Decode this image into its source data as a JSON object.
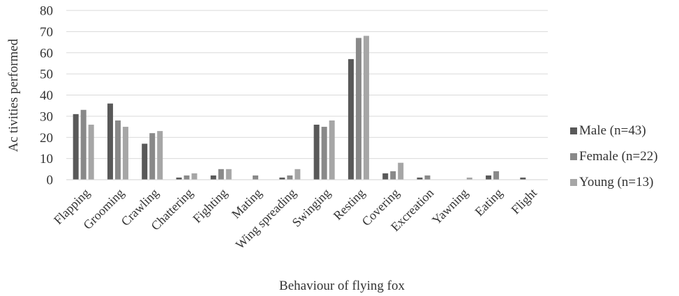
{
  "chart_data": {
    "type": "bar",
    "title": "",
    "xlabel": "Behaviour of flying fox",
    "ylabel": "Ac tivities performed",
    "ylim": [
      0,
      80
    ],
    "yticks": [
      0,
      10,
      20,
      30,
      40,
      50,
      60,
      70,
      80
    ],
    "grid": true,
    "legend_position": "right",
    "categories": [
      "Flapping",
      "Grooming",
      "Crawling",
      "Chattering",
      "Fighting",
      "Mating",
      "Wing spreading",
      "Swinging",
      "Resting",
      "Covering",
      "Excreation",
      "Yawning",
      "Eating",
      "Flight"
    ],
    "series": [
      {
        "name": "Male (n=43)",
        "color": "#595959",
        "values": [
          31,
          36,
          17,
          1,
          2,
          0,
          1,
          26,
          57,
          3,
          1,
          0,
          2,
          1
        ]
      },
      {
        "name": "Female (n=22)",
        "color": "#898989",
        "values": [
          33,
          28,
          22,
          2,
          5,
          2,
          2,
          25,
          67,
          4,
          2,
          0,
          4,
          0
        ]
      },
      {
        "name": "Young (n=13)",
        "color": "#a6a6a6",
        "values": [
          26,
          25,
          23,
          3,
          5,
          0,
          5,
          28,
          68,
          8,
          0,
          1,
          0,
          0
        ]
      }
    ]
  }
}
